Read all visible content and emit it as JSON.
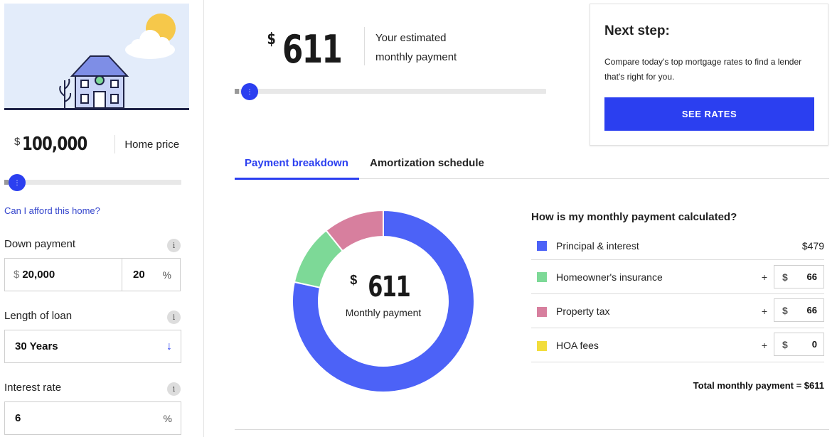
{
  "sidebar": {
    "home_price": {
      "currency": "$",
      "value": "100,000",
      "label": "Home price",
      "slider_level": 0.0
    },
    "afford_link": "Can I afford this home?",
    "down_payment": {
      "label": "Down payment",
      "currency": "$",
      "amount": "20,000",
      "percent": "20",
      "percent_symbol": "%"
    },
    "loan_length": {
      "label": "Length of loan",
      "value": "30 Years"
    },
    "interest_rate": {
      "label": "Interest rate",
      "value": "6",
      "suffix": "%"
    },
    "info_glyph": "i"
  },
  "estimate": {
    "currency": "$",
    "amount": "611",
    "caption_line1": "Your estimated",
    "caption_line2": "monthly payment",
    "slider_level": 0.0
  },
  "next_step": {
    "title": "Next step:",
    "description": "Compare today's top mortgage rates to find a lender that's right for you.",
    "button": "SEE RATES"
  },
  "tabs": [
    {
      "label": "Payment breakdown",
      "active": true
    },
    {
      "label": "Amortization schedule",
      "active": false
    }
  ],
  "donut": {
    "currency": "$",
    "amount": "611",
    "label": "Monthly payment",
    "segments": [
      {
        "name": "Principal & interest",
        "value": 479,
        "color": "#4c62f7"
      },
      {
        "name": "Homeowner's insurance",
        "value": 66,
        "color": "#7dd997"
      },
      {
        "name": "Property tax",
        "value": 66,
        "color": "#d77f9e"
      },
      {
        "name": "HOA fees",
        "value": 0,
        "color": "#f2dd3c"
      }
    ]
  },
  "breakdown": {
    "title": "How is my monthly payment calculated?",
    "rows": [
      {
        "name": "Principal & interest",
        "color": "#4c62f7",
        "display": "$479"
      },
      {
        "name": "Homeowner's insurance",
        "color": "#7dd997",
        "plus": "+",
        "currency": "$",
        "value": "66"
      },
      {
        "name": "Property tax",
        "color": "#d77f9e",
        "plus": "+",
        "currency": "$",
        "value": "66"
      },
      {
        "name": "HOA fees",
        "color": "#f2dd3c",
        "plus": "+",
        "currency": "$",
        "value": "0"
      }
    ],
    "total": "Total monthly payment = $611"
  },
  "icons": {
    "slider_handle": "slider-handle-icon",
    "dropdown": "arrow-down-icon",
    "info": "info-icon",
    "illustration": "house-illustration"
  },
  "colors": {
    "accent": "#2b3ff0",
    "link": "#3344cc"
  }
}
